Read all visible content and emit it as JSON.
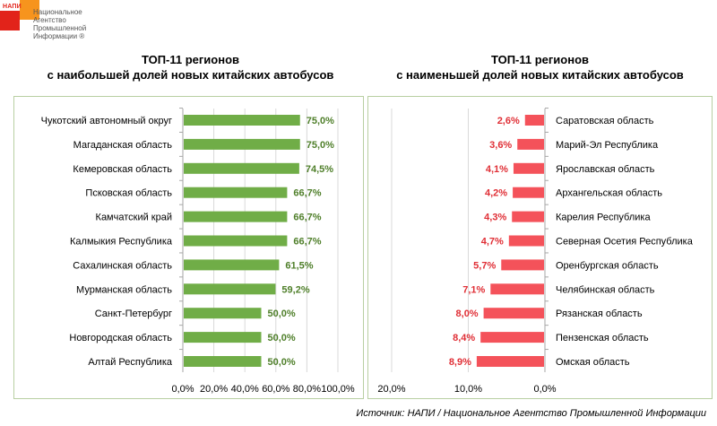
{
  "logo": {
    "abbr": "НАПИ",
    "name": "Национальное\nАгентство\nПромышленной\nИнформации ®"
  },
  "colors": {
    "green": "#70ad47",
    "green_label": "#4f7f2a",
    "red": "#f4525a",
    "red_label": "#e02f36"
  },
  "chart_data": [
    {
      "type": "bar",
      "orientation": "horizontal",
      "title_line1": "ТОП-11 регионов",
      "title_line2": "с наибольшей долей новых китайских автобусов",
      "categories": [
        "Чукотский автономный округ",
        "Магаданская область",
        "Кемеровская область",
        "Псковская область",
        "Камчатский край",
        "Калмыкия Республика",
        "Сахалинская область",
        "Мурманская область",
        "Санкт-Петербург",
        "Новгородская область",
        "Алтай Республика"
      ],
      "values": [
        75.0,
        75.0,
        74.5,
        66.7,
        66.7,
        66.7,
        61.5,
        59.2,
        50.0,
        50.0,
        50.0
      ],
      "labels": [
        "75,0%",
        "75,0%",
        "74,5%",
        "66,7%",
        "66,7%",
        "66,7%",
        "61,5%",
        "59,2%",
        "50,0%",
        "50,0%",
        "50,0%"
      ],
      "xlim": [
        0,
        100
      ],
      "ticks": [
        "0,0%",
        "20,0%",
        "40,0%",
        "60,0%",
        "80,0%",
        "100,0%"
      ],
      "grid": true
    },
    {
      "type": "bar",
      "orientation": "horizontal",
      "reversed_axis": true,
      "title_line1": "ТОП-11 регионов",
      "title_line2": "с наименьшей долей новых китайских автобусов",
      "categories": [
        "Саратовская область",
        "Марий-Эл Республика",
        "Ярославская область",
        "Архангельская область",
        "Карелия Республика",
        "Северная Осетия Республика",
        "Оренбургская область",
        "Челябинская область",
        "Рязанская область",
        "Пензенская область",
        "Омская область"
      ],
      "values": [
        2.6,
        3.6,
        4.1,
        4.2,
        4.3,
        4.7,
        5.7,
        7.1,
        8.0,
        8.4,
        8.9
      ],
      "labels": [
        "2,6%",
        "3,6%",
        "4,1%",
        "4,2%",
        "4,3%",
        "4,7%",
        "5,7%",
        "7,1%",
        "8,0%",
        "8,4%",
        "8,9%"
      ],
      "xlim": [
        0,
        20
      ],
      "ticks": [
        "20,0%",
        "10,0%",
        "0,0%"
      ],
      "grid": true
    }
  ],
  "source": "Источник: НАПИ / Национальное Агентство Промышленной Информации"
}
